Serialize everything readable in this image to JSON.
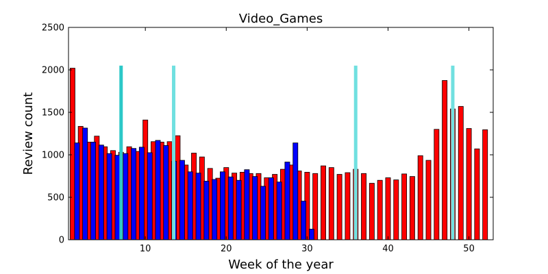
{
  "chart_data": {
    "type": "bar",
    "title": "Video_Games",
    "xlabel": "Week of the year",
    "ylabel": "Review count",
    "xlim": [
      0.5,
      53
    ],
    "ylim": [
      0,
      2500
    ],
    "xticks": [
      10,
      20,
      30,
      40,
      50
    ],
    "yticks": [
      0,
      500,
      1000,
      1500,
      2000,
      2500
    ],
    "grid": false,
    "colors": {
      "red_series": "#ff0000",
      "blue_series": "#0000ff",
      "marker_dark": "#2cc8c8",
      "marker_light": "#70e0e0",
      "bar_edge": "#000000"
    },
    "series": [
      {
        "color": "#ff0000",
        "points": [
          [
            1,
            2020
          ],
          [
            2,
            1335
          ],
          [
            3,
            1150
          ],
          [
            4,
            1220
          ],
          [
            5,
            1095
          ],
          [
            6,
            1050
          ],
          [
            7,
            1030
          ],
          [
            8,
            1095
          ],
          [
            9,
            1040
          ],
          [
            10,
            1410
          ],
          [
            11,
            1155
          ],
          [
            12,
            1150
          ],
          [
            13,
            1155
          ],
          [
            14,
            1225
          ],
          [
            15,
            880
          ],
          [
            16,
            1020
          ],
          [
            17,
            975
          ],
          [
            18,
            840
          ],
          [
            19,
            725
          ],
          [
            20,
            850
          ],
          [
            21,
            785
          ],
          [
            22,
            795
          ],
          [
            23,
            780
          ],
          [
            24,
            780
          ],
          [
            25,
            730
          ],
          [
            26,
            770
          ],
          [
            27,
            830
          ],
          [
            28,
            880
          ],
          [
            29,
            810
          ],
          [
            30,
            795
          ],
          [
            31,
            780
          ],
          [
            32,
            870
          ],
          [
            33,
            850
          ],
          [
            34,
            770
          ],
          [
            35,
            790
          ],
          [
            36,
            830
          ],
          [
            37,
            780
          ],
          [
            38,
            665
          ],
          [
            39,
            700
          ],
          [
            40,
            730
          ],
          [
            41,
            705
          ],
          [
            42,
            775
          ],
          [
            43,
            745
          ],
          [
            44,
            990
          ],
          [
            45,
            935
          ],
          [
            46,
            1300
          ],
          [
            47,
            1875
          ],
          [
            48,
            1540
          ],
          [
            49,
            1570
          ],
          [
            50,
            1310
          ],
          [
            51,
            1070
          ],
          [
            52,
            1295
          ]
        ]
      },
      {
        "color": "#0000ff",
        "points": [
          [
            1,
            1140
          ],
          [
            2,
            1315
          ],
          [
            3,
            1150
          ],
          [
            4,
            1115
          ],
          [
            5,
            1015
          ],
          [
            6,
            995
          ],
          [
            7,
            1015
          ],
          [
            8,
            1075
          ],
          [
            9,
            1090
          ],
          [
            10,
            1025
          ],
          [
            11,
            1170
          ],
          [
            12,
            1110
          ],
          [
            13,
            925
          ],
          [
            14,
            935
          ],
          [
            15,
            800
          ],
          [
            16,
            785
          ],
          [
            17,
            690
          ],
          [
            18,
            710
          ],
          [
            19,
            800
          ],
          [
            20,
            740
          ],
          [
            21,
            700
          ],
          [
            22,
            825
          ],
          [
            23,
            745
          ],
          [
            24,
            630
          ],
          [
            25,
            730
          ],
          [
            26,
            680
          ],
          [
            27,
            915
          ],
          [
            28,
            1140
          ],
          [
            29,
            455
          ],
          [
            30,
            125
          ]
        ]
      }
    ],
    "week_markers": [
      {
        "x": 7,
        "ymax": 2050,
        "color": "#2cc8c8"
      },
      {
        "x": 13.5,
        "ymax": 2050,
        "color": "#70e0e0"
      },
      {
        "x": 36,
        "ymax": 2050,
        "color": "#70e0e0"
      },
      {
        "x": 48,
        "ymax": 2050,
        "color": "#70e0e0"
      }
    ]
  }
}
